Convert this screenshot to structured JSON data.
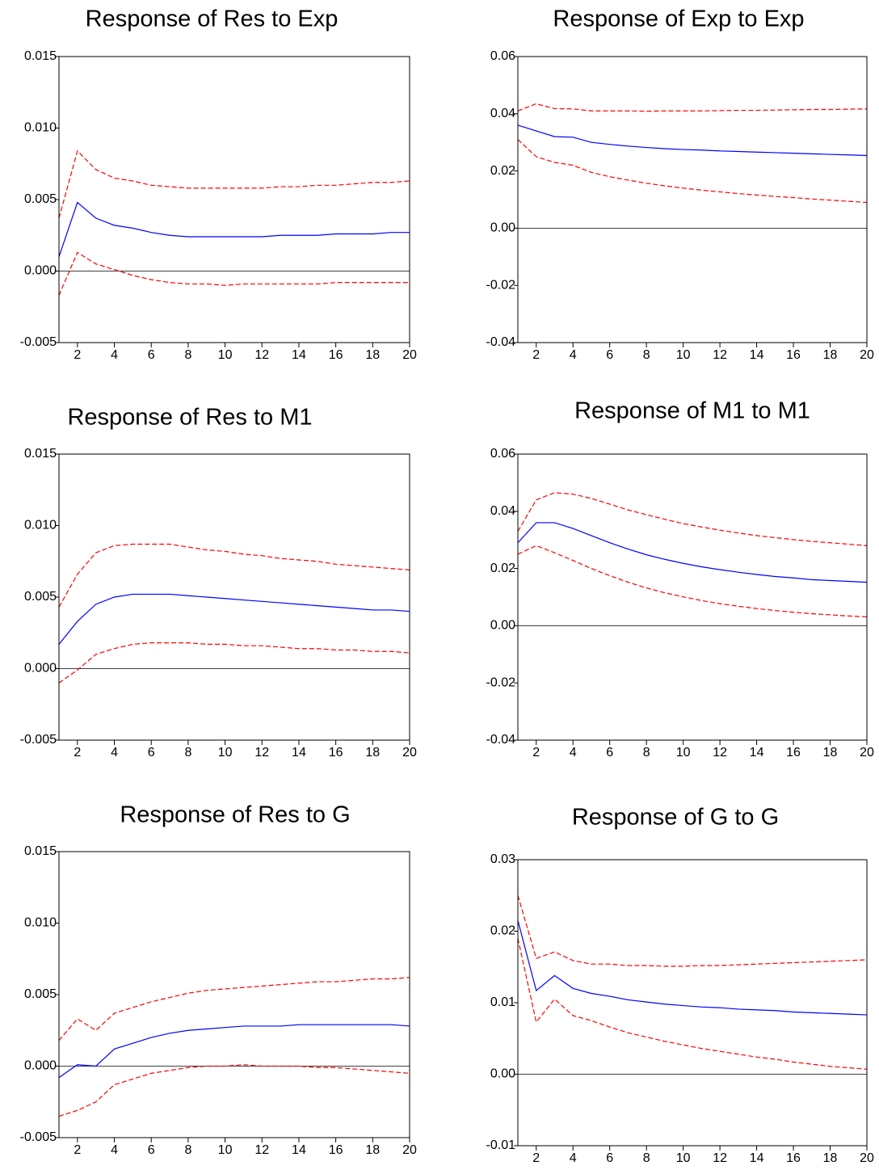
{
  "chart_data": [
    {
      "type": "line",
      "title": "Response of Res to Exp",
      "x": [
        1,
        2,
        3,
        4,
        5,
        6,
        7,
        8,
        9,
        10,
        11,
        12,
        13,
        14,
        15,
        16,
        17,
        18,
        19,
        20
      ],
      "xlim": [
        1,
        20
      ],
      "xticks": [
        2,
        4,
        6,
        8,
        10,
        12,
        14,
        16,
        18,
        20
      ],
      "ylim": [
        -0.005,
        0.015
      ],
      "yticks": [
        -0.005,
        {
          "value": 0,
          "label": "0.000"
        },
        0.005,
        {
          "value": 0.01,
          "label": "0.010"
        },
        0.015
      ],
      "zero_line": true,
      "series": [
        {
          "color": "#0000ff",
          "style": "solid",
          "values": [
            0.001,
            0.0048,
            0.0037,
            0.0032,
            0.003,
            0.0027,
            0.0025,
            0.0024,
            0.0024,
            0.0024,
            0.0024,
            0.0024,
            0.0025,
            0.0025,
            0.0025,
            0.0026,
            0.0026,
            0.0026,
            0.0027,
            0.0027
          ]
        },
        {
          "color": "#ff0000",
          "style": "dashed",
          "values": [
            0.0037,
            0.0084,
            0.0071,
            0.0065,
            0.0063,
            0.006,
            0.0059,
            0.0058,
            0.0058,
            0.0058,
            0.0058,
            0.0058,
            0.0059,
            0.0059,
            0.006,
            0.006,
            0.0061,
            0.0062,
            0.0062,
            0.0063
          ]
        },
        {
          "color": "#ff0000",
          "style": "dashed",
          "values": [
            -0.0017,
            0.0013,
            0.0005,
            0.0001,
            -0.0003,
            -0.0006,
            -0.0008,
            -0.0009,
            -0.0009,
            -0.001,
            -0.0009,
            -0.0009,
            -0.0009,
            -0.0009,
            -0.0009,
            -0.0008,
            -0.0008,
            -0.0008,
            -0.0008,
            -0.0008
          ]
        }
      ]
    },
    {
      "type": "line",
      "title": "Response of Exp to Exp",
      "x": [
        1,
        2,
        3,
        4,
        5,
        6,
        7,
        8,
        9,
        10,
        11,
        12,
        13,
        14,
        15,
        16,
        17,
        18,
        19,
        20
      ],
      "xlim": [
        1,
        20
      ],
      "xticks": [
        2,
        4,
        6,
        8,
        10,
        12,
        14,
        16,
        18,
        20
      ],
      "ylim": [
        -0.04,
        0.06
      ],
      "yticks": [
        -0.04,
        -0.02,
        {
          "value": 0,
          "label": "0.00"
        },
        0.02,
        0.04,
        0.06
      ],
      "zero_line": true,
      "series": [
        {
          "color": "#0000ff",
          "style": "solid",
          "values": [
            0.036,
            0.034,
            0.032,
            0.0318,
            0.03,
            0.0293,
            0.0287,
            0.0282,
            0.0278,
            0.0275,
            0.0273,
            0.027,
            0.0268,
            0.0266,
            0.0264,
            0.0262,
            0.026,
            0.0258,
            0.0256,
            0.0254
          ]
        },
        {
          "color": "#ff0000",
          "style": "dashed",
          "values": [
            0.041,
            0.0435,
            0.0418,
            0.0417,
            0.041,
            0.041,
            0.041,
            0.0409,
            0.041,
            0.041,
            0.041,
            0.0411,
            0.0412,
            0.0412,
            0.0413,
            0.0414,
            0.0415,
            0.0415,
            0.0416,
            0.0417
          ]
        },
        {
          "color": "#ff0000",
          "style": "dashed",
          "values": [
            0.031,
            0.025,
            0.023,
            0.022,
            0.0195,
            0.018,
            0.0168,
            0.0157,
            0.0148,
            0.014,
            0.0133,
            0.0127,
            0.0121,
            0.0116,
            0.0111,
            0.0107,
            0.0102,
            0.0098,
            0.0094,
            0.009
          ]
        }
      ]
    },
    {
      "type": "line",
      "title": "Response of Res to M1",
      "x": [
        1,
        2,
        3,
        4,
        5,
        6,
        7,
        8,
        9,
        10,
        11,
        12,
        13,
        14,
        15,
        16,
        17,
        18,
        19,
        20
      ],
      "xlim": [
        1,
        20
      ],
      "xticks": [
        2,
        4,
        6,
        8,
        10,
        12,
        14,
        16,
        18,
        20
      ],
      "ylim": [
        -0.005,
        0.015
      ],
      "yticks": [
        -0.005,
        {
          "value": 0,
          "label": "0.000"
        },
        0.005,
        {
          "value": 0.01,
          "label": "0.010"
        },
        0.015
      ],
      "zero_line": true,
      "series": [
        {
          "color": "#0000ff",
          "style": "solid",
          "values": [
            0.0017,
            0.0033,
            0.0045,
            0.005,
            0.0052,
            0.0052,
            0.0052,
            0.0051,
            0.005,
            0.0049,
            0.0048,
            0.0047,
            0.0046,
            0.0045,
            0.0044,
            0.0043,
            0.0042,
            0.0041,
            0.0041,
            0.004
          ]
        },
        {
          "color": "#ff0000",
          "style": "dashed",
          "values": [
            0.0043,
            0.0066,
            0.0081,
            0.0086,
            0.0087,
            0.0087,
            0.0087,
            0.0085,
            0.0083,
            0.0082,
            0.008,
            0.0079,
            0.0077,
            0.0076,
            0.0075,
            0.0073,
            0.0072,
            0.0071,
            0.007,
            0.0069
          ]
        },
        {
          "color": "#ff0000",
          "style": "dashed",
          "values": [
            -0.001,
            -0.0001,
            0.001,
            0.0014,
            0.0017,
            0.0018,
            0.0018,
            0.0018,
            0.0017,
            0.0017,
            0.0016,
            0.0016,
            0.0015,
            0.0014,
            0.0014,
            0.0013,
            0.0013,
            0.0012,
            0.0012,
            0.0011
          ]
        }
      ]
    },
    {
      "type": "line",
      "title": "Response of M1 to M1",
      "x": [
        1,
        2,
        3,
        4,
        5,
        6,
        7,
        8,
        9,
        10,
        11,
        12,
        13,
        14,
        15,
        16,
        17,
        18,
        19,
        20
      ],
      "xlim": [
        1,
        20
      ],
      "xticks": [
        2,
        4,
        6,
        8,
        10,
        12,
        14,
        16,
        18,
        20
      ],
      "ylim": [
        -0.04,
        0.06
      ],
      "yticks": [
        -0.04,
        -0.02,
        {
          "value": 0,
          "label": "0.00"
        },
        0.02,
        0.04,
        0.06
      ],
      "zero_line": true,
      "series": [
        {
          "color": "#0000ff",
          "style": "solid",
          "values": [
            0.029,
            0.036,
            0.036,
            0.034,
            0.0315,
            0.029,
            0.0268,
            0.0248,
            0.0232,
            0.0218,
            0.0206,
            0.0196,
            0.0187,
            0.0179,
            0.0172,
            0.0167,
            0.0161,
            0.0158,
            0.0155,
            0.0152
          ]
        },
        {
          "color": "#ff0000",
          "style": "dashed",
          "values": [
            0.033,
            0.044,
            0.0465,
            0.046,
            0.0445,
            0.0425,
            0.0405,
            0.0388,
            0.0372,
            0.0357,
            0.0345,
            0.0334,
            0.0324,
            0.0315,
            0.0308,
            0.0301,
            0.0295,
            0.029,
            0.0285,
            0.028
          ]
        },
        {
          "color": "#ff0000",
          "style": "dashed",
          "values": [
            0.025,
            0.028,
            0.0255,
            0.0228,
            0.02,
            0.0175,
            0.0152,
            0.0132,
            0.0115,
            0.0101,
            0.0088,
            0.0077,
            0.0068,
            0.006,
            0.0053,
            0.0047,
            0.0042,
            0.0038,
            0.0034,
            0.0031
          ]
        }
      ]
    },
    {
      "type": "line",
      "title": "Response of Res to G",
      "x": [
        1,
        2,
        3,
        4,
        5,
        6,
        7,
        8,
        9,
        10,
        11,
        12,
        13,
        14,
        15,
        16,
        17,
        18,
        19,
        20
      ],
      "xlim": [
        1,
        20
      ],
      "xticks": [
        2,
        4,
        6,
        8,
        10,
        12,
        14,
        16,
        18,
        20
      ],
      "ylim": [
        -0.005,
        0.015
      ],
      "yticks": [
        -0.005,
        {
          "value": 0,
          "label": "0.000"
        },
        0.005,
        {
          "value": 0.01,
          "label": "0.010"
        },
        0.015
      ],
      "zero_line": true,
      "series": [
        {
          "color": "#0000ff",
          "style": "solid",
          "values": [
            -0.0008,
            0.0001,
            0.0,
            0.0012,
            0.0016,
            0.002,
            0.0023,
            0.0025,
            0.0026,
            0.0027,
            0.0028,
            0.0028,
            0.0028,
            0.0029,
            0.0029,
            0.0029,
            0.0029,
            0.0029,
            0.0029,
            0.0028
          ]
        },
        {
          "color": "#ff0000",
          "style": "dashed",
          "values": [
            0.0018,
            0.0033,
            0.0025,
            0.0037,
            0.0041,
            0.0045,
            0.0048,
            0.0051,
            0.0053,
            0.0054,
            0.0055,
            0.0056,
            0.0057,
            0.0058,
            0.0059,
            0.0059,
            0.006,
            0.0061,
            0.0061,
            0.0062
          ]
        },
        {
          "color": "#ff0000",
          "style": "dashed",
          "values": [
            -0.0035,
            -0.0031,
            -0.0025,
            -0.0013,
            -0.0009,
            -0.0005,
            -0.0003,
            -0.0001,
            0.0,
            0.0,
            0.0001,
            0.0,
            0.0,
            0.0,
            -0.0001,
            -0.0001,
            -0.0002,
            -0.0003,
            -0.0004,
            -0.0005
          ]
        }
      ]
    },
    {
      "type": "line",
      "title": "Response of G to G",
      "x": [
        1,
        2,
        3,
        4,
        5,
        6,
        7,
        8,
        9,
        10,
        11,
        12,
        13,
        14,
        15,
        16,
        17,
        18,
        19,
        20
      ],
      "xlim": [
        1,
        20
      ],
      "xticks": [
        2,
        4,
        6,
        8,
        10,
        12,
        14,
        16,
        18,
        20
      ],
      "ylim": [
        -0.01,
        0.03
      ],
      "yticks": [
        -0.01,
        {
          "value": 0,
          "label": "0.00"
        },
        0.01,
        0.02,
        0.03
      ],
      "zero_line": true,
      "series": [
        {
          "color": "#0000ff",
          "style": "solid",
          "values": [
            0.0215,
            0.0117,
            0.0138,
            0.012,
            0.0113,
            0.0109,
            0.0104,
            0.0101,
            0.0098,
            0.0096,
            0.0094,
            0.0093,
            0.0091,
            0.009,
            0.0089,
            0.0087,
            0.0086,
            0.0085,
            0.0084,
            0.0083
          ]
        },
        {
          "color": "#ff0000",
          "style": "dashed",
          "values": [
            0.025,
            0.0162,
            0.0171,
            0.0159,
            0.0154,
            0.0154,
            0.0152,
            0.0152,
            0.0151,
            0.0151,
            0.0152,
            0.0152,
            0.0153,
            0.0154,
            0.0155,
            0.0156,
            0.0157,
            0.0158,
            0.0159,
            0.016
          ]
        },
        {
          "color": "#ff0000",
          "style": "dashed",
          "values": [
            0.019,
            0.0073,
            0.0105,
            0.0082,
            0.0075,
            0.0066,
            0.0058,
            0.0052,
            0.0046,
            0.0041,
            0.0036,
            0.0032,
            0.0028,
            0.0024,
            0.0021,
            0.0017,
            0.0014,
            0.0011,
            0.0009,
            0.0007
          ]
        }
      ]
    }
  ]
}
